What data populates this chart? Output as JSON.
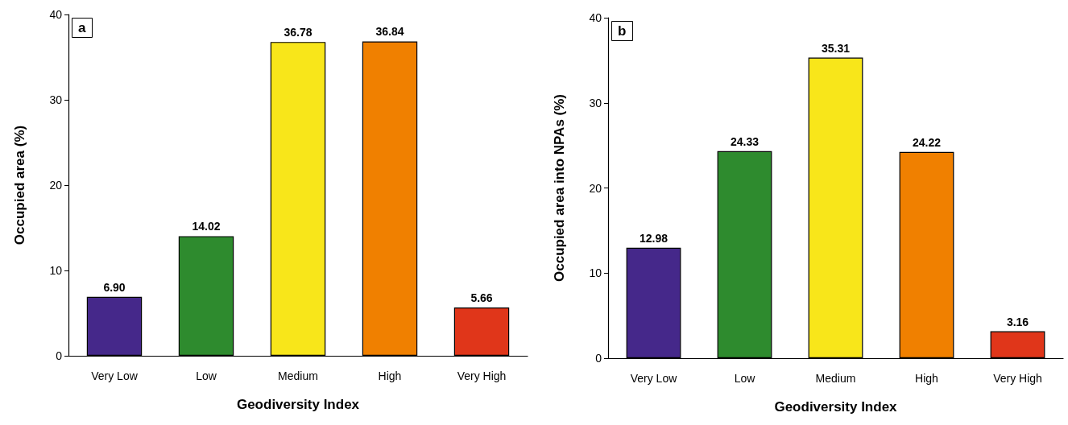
{
  "chart_data": [
    {
      "type": "bar",
      "title": "a",
      "xlabel": "Geodiversity Index",
      "ylabel": "Occupied area (%)",
      "categories": [
        "Very Low",
        "Low",
        "Medium",
        "High",
        "Very High"
      ],
      "values": [
        6.9,
        14.02,
        36.78,
        36.84,
        5.66
      ],
      "colors": [
        "#45288a",
        "#2e8b2e",
        "#f8e61a",
        "#f08000",
        "#e0361a"
      ],
      "value_labels": [
        "6.90",
        "14.02",
        "36.78",
        "36.84",
        "5.66"
      ],
      "ylim": [
        0,
        40
      ],
      "yticks": [
        0,
        10,
        20,
        30,
        40
      ]
    },
    {
      "type": "bar",
      "title": "b",
      "xlabel": "Geodiversity Index",
      "ylabel": "Occupied area into NPAs (%)",
      "categories": [
        "Very Low",
        "Low",
        "Medium",
        "High",
        "Very High"
      ],
      "values": [
        12.98,
        24.33,
        35.31,
        24.22,
        3.16
      ],
      "colors": [
        "#45288a",
        "#2e8b2e",
        "#f8e61a",
        "#f08000",
        "#e0361a"
      ],
      "value_labels": [
        "12.98",
        "24.33",
        "35.31",
        "24.22",
        "3.16"
      ],
      "ylim": [
        0,
        40
      ],
      "yticks": [
        0,
        10,
        20,
        30,
        40
      ]
    }
  ]
}
